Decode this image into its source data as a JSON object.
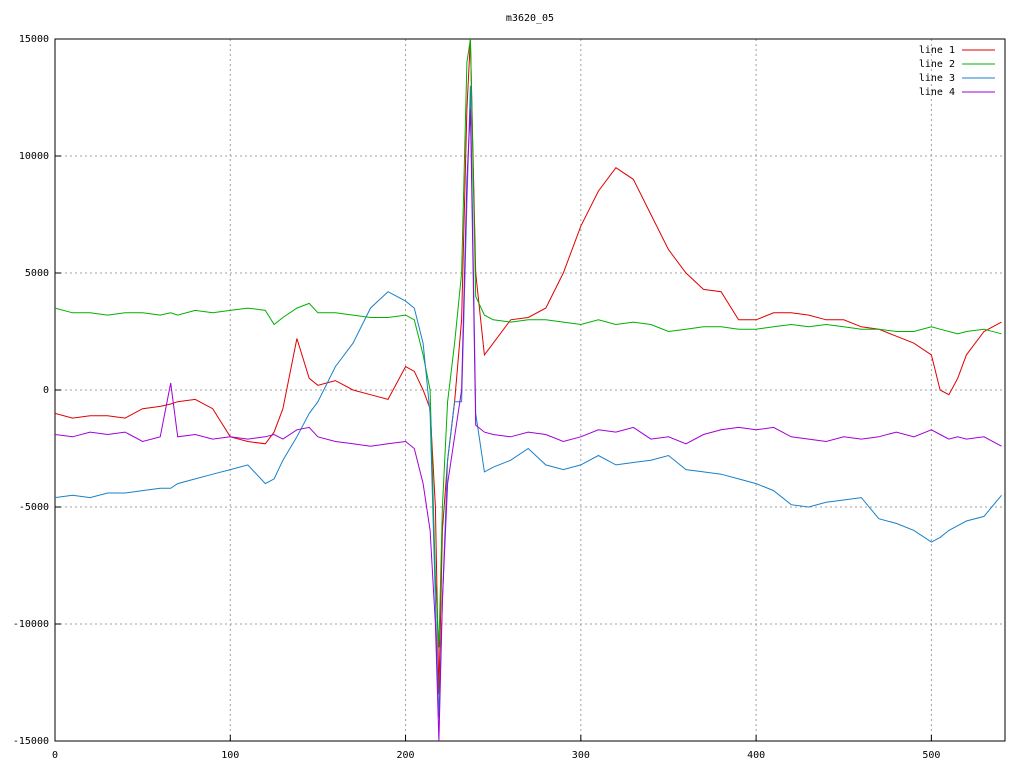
{
  "chart_data": {
    "type": "line",
    "title": "m3620_05",
    "x": [
      0,
      10,
      20,
      30,
      40,
      50,
      60,
      66,
      70,
      80,
      90,
      100,
      110,
      120,
      125,
      130,
      138,
      145,
      150,
      160,
      170,
      180,
      190,
      200,
      205,
      210,
      214,
      217,
      219,
      221,
      224,
      228,
      232,
      235,
      237,
      240,
      245,
      250,
      260,
      270,
      280,
      290,
      300,
      310,
      320,
      330,
      340,
      350,
      360,
      370,
      380,
      390,
      400,
      410,
      420,
      430,
      440,
      450,
      460,
      470,
      480,
      490,
      500,
      505,
      510,
      515,
      520,
      530,
      540
    ],
    "series": [
      {
        "name": "line 1",
        "color": "#e00000",
        "values": [
          -1000,
          -1200,
          -1100,
          -1100,
          -1200,
          -800,
          -700,
          -600,
          -500,
          -400,
          -800,
          -2000,
          -2200,
          -2300,
          -1800,
          -800,
          2200,
          500,
          200,
          400,
          0,
          -200,
          -400,
          1000,
          800,
          0,
          -800,
          -5000,
          -13000,
          -6000,
          -3000,
          -500,
          3000,
          12000,
          15000,
          5000,
          1500,
          2000,
          3000,
          3100,
          3500,
          5000,
          7000,
          8500,
          9500,
          9000,
          7500,
          6000,
          5000,
          4300,
          4200,
          3000,
          3000,
          3300,
          3300,
          3200,
          3000,
          3000,
          2700,
          2600,
          2300,
          2000,
          1500,
          0,
          -200,
          500,
          1500,
          2500,
          2900
        ]
      },
      {
        "name": "line 2",
        "color": "#00b000",
        "values": [
          3500,
          3300,
          3300,
          3200,
          3300,
          3300,
          3200,
          3300,
          3200,
          3400,
          3300,
          3400,
          3500,
          3400,
          2800,
          3100,
          3500,
          3700,
          3300,
          3300,
          3200,
          3100,
          3100,
          3200,
          3000,
          1500,
          0,
          -8000,
          -11000,
          -5000,
          -500,
          2000,
          5000,
          14000,
          15000,
          4000,
          3200,
          3000,
          2900,
          3000,
          3000,
          2900,
          2800,
          3000,
          2800,
          2900,
          2800,
          2500,
          2600,
          2700,
          2700,
          2600,
          2600,
          2700,
          2800,
          2700,
          2800,
          2700,
          2600,
          2600,
          2500,
          2500,
          2700,
          2600,
          2500,
          2400,
          2500,
          2600,
          2400
        ]
      },
      {
        "name": "line 3",
        "color": "#1a80c8",
        "values": [
          -4600,
          -4500,
          -4600,
          -4400,
          -4400,
          -4300,
          -4200,
          -4200,
          -4000,
          -3800,
          -3600,
          -3400,
          -3200,
          -4000,
          -3800,
          -3000,
          -2000,
          -1000,
          -500,
          1000,
          2000,
          3500,
          4200,
          3800,
          3500,
          2000,
          -1000,
          -9000,
          -14000,
          -9000,
          -3000,
          -500,
          -500,
          8000,
          13000,
          -1000,
          -3500,
          -3300,
          -3000,
          -2500,
          -3200,
          -3400,
          -3200,
          -2800,
          -3200,
          -3100,
          -3000,
          -2800,
          -3400,
          -3500,
          -3600,
          -3800,
          -4000,
          -4300,
          -4900,
          -5000,
          -4800,
          -4700,
          -4600,
          -5500,
          -5700,
          -6000,
          -6500,
          -6300,
          -6000,
          -5800,
          -5600,
          -5400,
          -4500
        ]
      },
      {
        "name": "line 4",
        "color": "#a000d8",
        "values": [
          -1900,
          -2000,
          -1800,
          -1900,
          -1800,
          -2200,
          -2000,
          300,
          -2000,
          -1900,
          -2100,
          -2000,
          -2100,
          -2000,
          -1900,
          -2100,
          -1700,
          -1600,
          -2000,
          -2200,
          -2300,
          -2400,
          -2300,
          -2200,
          -2500,
          -4000,
          -6000,
          -10000,
          -15000,
          -9000,
          -4000,
          -2000,
          0,
          9000,
          12000,
          -1500,
          -1800,
          -1900,
          -2000,
          -1800,
          -1900,
          -2200,
          -2000,
          -1700,
          -1800,
          -1600,
          -2100,
          -2000,
          -2300,
          -1900,
          -1700,
          -1600,
          -1700,
          -1600,
          -2000,
          -2100,
          -2200,
          -2000,
          -2100,
          -2000,
          -1800,
          -2000,
          -1700,
          -1900,
          -2100,
          -2000,
          -2100,
          -2000,
          -2400
        ]
      }
    ],
    "xlim": [
      0,
      542
    ],
    "ylim": [
      -15000,
      15000
    ],
    "xticks": [
      0,
      100,
      200,
      300,
      400,
      500
    ],
    "yticks": [
      -15000,
      -10000,
      -5000,
      0,
      5000,
      10000,
      15000
    ],
    "grid": true,
    "legend": "top-right"
  }
}
